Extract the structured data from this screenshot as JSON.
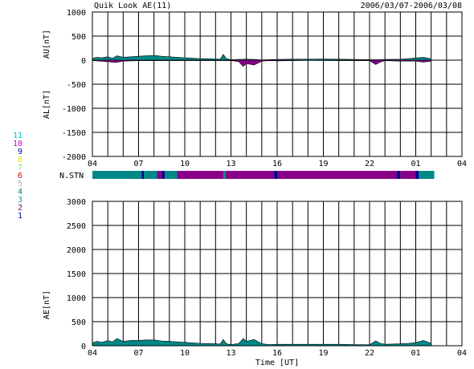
{
  "header": {
    "title": "Quik Look AE(11)",
    "date_range": "2006/03/07-2006/03/08"
  },
  "station_legend": {
    "label": "N.STN",
    "numbers": [
      "11",
      "10",
      "9",
      "8",
      "7",
      "6",
      "5",
      "4",
      "3",
      "2",
      "1"
    ],
    "colors": [
      "#00c8c8",
      "#c800c8",
      "#0000c8",
      "#e6e600",
      "#78e678",
      "#e60000",
      "#b4b4b4",
      "#008282",
      "#28a0a0",
      "#8c0064",
      "#0000a0"
    ]
  },
  "colors": {
    "grid": "#000000",
    "teal": "#008888",
    "purple": "#880088",
    "navy": "#000088"
  },
  "x_axis": {
    "ticks": [
      "04",
      "07",
      "10",
      "13",
      "16",
      "19",
      "22",
      "01",
      "04"
    ],
    "start_hour": 4,
    "end_hour": 28,
    "xlabel": "Time [UT]"
  },
  "chart_data": [
    {
      "type": "area",
      "name": "AU/AL",
      "ylabel_upper": "AU[nT]",
      "ylabel_lower": "AL[nT]",
      "ylim": [
        -2000,
        1000
      ],
      "yticks": [
        "1000",
        "500",
        "0",
        "-500",
        "-1000",
        "-1500",
        "-2000"
      ],
      "grid": true,
      "au": {
        "x": [
          4.0,
          4.3,
          4.6,
          5.0,
          5.3,
          5.6,
          6.0,
          6.5,
          7.0,
          7.5,
          8.0,
          8.5,
          9.0,
          9.5,
          10.0,
          10.5,
          11.0,
          11.5,
          12.0,
          12.3,
          12.5,
          12.7,
          13.0,
          13.5,
          14.0,
          14.5,
          15.0,
          15.5,
          16.0,
          17.0,
          18.0,
          19.0,
          20.0,
          21.0,
          22.0,
          22.5,
          23.0,
          24.0,
          24.5,
          25.0,
          25.5,
          26.0
        ],
        "y": [
          40,
          60,
          50,
          70,
          40,
          90,
          60,
          70,
          80,
          90,
          100,
          80,
          70,
          60,
          50,
          40,
          30,
          30,
          25,
          20,
          120,
          30,
          10,
          15,
          20,
          15,
          5,
          10,
          15,
          20,
          20,
          25,
          20,
          15,
          10,
          10,
          15,
          20,
          30,
          45,
          60,
          30
        ]
      },
      "al": {
        "x": [
          4.0,
          4.5,
          5.0,
          5.5,
          6.0,
          6.5,
          7.0,
          8.0,
          9.0,
          10.0,
          11.0,
          12.0,
          13.0,
          13.5,
          13.8,
          14.0,
          14.5,
          15.0,
          15.5,
          16.0,
          17.0,
          18.0,
          20.0,
          22.0,
          22.4,
          22.7,
          23.0,
          24.0,
          25.0,
          25.5,
          26.0
        ],
        "y": [
          -10,
          -20,
          -30,
          -50,
          -20,
          -15,
          -10,
          -10,
          -10,
          -10,
          -10,
          -10,
          -10,
          -30,
          -130,
          -70,
          -100,
          -20,
          -10,
          -15,
          -10,
          -5,
          -10,
          -10,
          -90,
          -40,
          -10,
          -20,
          -20,
          -40,
          -20
        ]
      }
    },
    {
      "type": "area",
      "name": "AE",
      "ylabel": "AE[nT]",
      "ylim": [
        0,
        3000
      ],
      "yticks": [
        "3000",
        "2500",
        "2000",
        "1500",
        "1000",
        "500",
        "0"
      ],
      "grid": true,
      "x": [
        4.0,
        4.3,
        4.6,
        5.0,
        5.3,
        5.6,
        6.0,
        6.5,
        7.0,
        7.5,
        8.0,
        8.5,
        9.0,
        9.5,
        10.0,
        10.5,
        11.0,
        11.5,
        12.0,
        12.3,
        12.5,
        12.7,
        13.0,
        13.5,
        13.8,
        14.0,
        14.5,
        15.0,
        15.5,
        16.0,
        17.0,
        18.0,
        19.0,
        20.0,
        21.0,
        22.0,
        22.4,
        22.7,
        23.0,
        24.0,
        24.5,
        25.0,
        25.5,
        26.0
      ],
      "y": [
        60,
        90,
        70,
        110,
        80,
        150,
        90,
        110,
        110,
        120,
        120,
        100,
        90,
        80,
        70,
        60,
        50,
        45,
        40,
        35,
        130,
        40,
        25,
        45,
        150,
        90,
        130,
        40,
        25,
        30,
        30,
        30,
        30,
        30,
        25,
        20,
        100,
        50,
        30,
        40,
        50,
        65,
        110,
        50
      ]
    }
  ],
  "station_bar": {
    "segments": [
      {
        "start": 4.0,
        "end": 7.2,
        "color": "#008888"
      },
      {
        "start": 7.2,
        "end": 7.35,
        "color": "#000088"
      },
      {
        "start": 7.35,
        "end": 8.2,
        "color": "#008888"
      },
      {
        "start": 8.2,
        "end": 8.5,
        "color": "#880088"
      },
      {
        "start": 8.5,
        "end": 8.7,
        "color": "#000088"
      },
      {
        "start": 8.7,
        "end": 9.5,
        "color": "#008888"
      },
      {
        "start": 9.5,
        "end": 12.5,
        "color": "#880088"
      },
      {
        "start": 12.5,
        "end": 12.65,
        "color": "#008888"
      },
      {
        "start": 12.65,
        "end": 15.8,
        "color": "#880088"
      },
      {
        "start": 15.8,
        "end": 16.0,
        "color": "#000088"
      },
      {
        "start": 16.0,
        "end": 23.8,
        "color": "#880088"
      },
      {
        "start": 23.8,
        "end": 24.0,
        "color": "#000088"
      },
      {
        "start": 24.0,
        "end": 25.0,
        "color": "#880088"
      },
      {
        "start": 25.0,
        "end": 25.2,
        "color": "#000088"
      },
      {
        "start": 25.2,
        "end": 26.2,
        "color": "#008888"
      }
    ]
  }
}
